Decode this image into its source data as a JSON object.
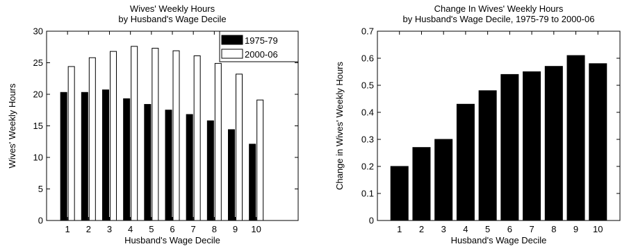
{
  "chart_data": [
    {
      "type": "bar",
      "title": "Wives' Weekly Hours",
      "subtitle": "by Husband's Wage Decile",
      "xlabel": "Husband's Wage Decile",
      "ylabel": "Wives' Weekly Hours",
      "ylim": [
        0,
        30
      ],
      "yticks": [
        0,
        5,
        10,
        15,
        20,
        25,
        30
      ],
      "xlim": [
        0,
        12
      ],
      "categories": [
        "1",
        "2",
        "3",
        "4",
        "5",
        "6",
        "7",
        "8",
        "9",
        "10"
      ],
      "legend_position": "top-right",
      "grid": false,
      "series": [
        {
          "name": "1975-79",
          "color": "#000000",
          "values": [
            20.3,
            20.3,
            20.7,
            19.3,
            18.4,
            17.5,
            16.8,
            15.8,
            14.4,
            12.1
          ]
        },
        {
          "name": "2000-06",
          "color": "#ffffff",
          "values": [
            24.4,
            25.8,
            26.8,
            27.6,
            27.3,
            26.9,
            26.1,
            24.9,
            23.2,
            19.1
          ]
        }
      ]
    },
    {
      "type": "bar",
      "title": "Change In Wives' Weekly Hours",
      "subtitle": "by Husband's Wage Decile, 1975-79 to 2000-06",
      "xlabel": "Husband's Wage Decile",
      "ylabel": "Change in Wives' Weekly Hours",
      "ylim": [
        0,
        0.7
      ],
      "yticks": [
        0,
        0.1,
        0.2,
        0.3,
        0.4,
        0.5,
        0.6,
        0.7
      ],
      "xlim": [
        0,
        11
      ],
      "categories": [
        "1",
        "2",
        "3",
        "4",
        "5",
        "6",
        "7",
        "8",
        "9",
        "10"
      ],
      "grid": false,
      "series": [
        {
          "color": "#000000",
          "values": [
            0.2,
            0.27,
            0.3,
            0.43,
            0.48,
            0.54,
            0.55,
            0.57,
            0.61,
            0.58
          ]
        }
      ]
    }
  ]
}
